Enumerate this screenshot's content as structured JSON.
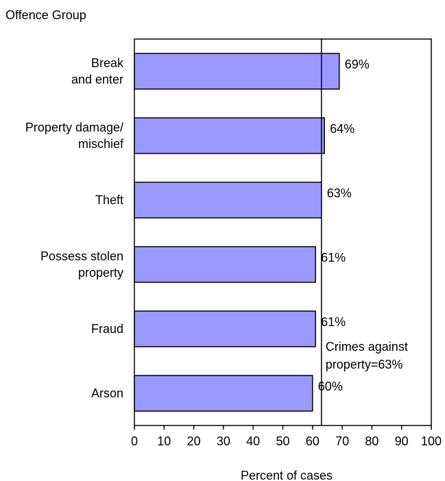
{
  "chart_data": {
    "type": "bar",
    "orientation": "horizontal",
    "y_axis_title": "Offence Group",
    "xlabel": "Percent of cases",
    "categories": [
      [
        "Break",
        "and enter"
      ],
      [
        "Property damage/",
        "mischief"
      ],
      [
        "Theft"
      ],
      [
        "Possess stolen",
        "property"
      ],
      [
        "Fraud"
      ],
      [
        "Arson"
      ]
    ],
    "values": [
      69,
      64,
      63,
      61,
      61,
      60
    ],
    "data_labels": [
      "69%",
      "64%",
      "63%",
      "61%",
      "61%",
      "60%"
    ],
    "xlim": [
      0,
      100
    ],
    "x_ticks": [
      0,
      10,
      20,
      30,
      40,
      50,
      60,
      70,
      80,
      90,
      100
    ],
    "grid": false,
    "reference_line": {
      "value": 63,
      "label_lines": [
        "Crimes against",
        "property=63%"
      ]
    },
    "colors": {
      "bar_fill": "#9999ff",
      "bar_stroke": "#000000",
      "axis": "#000000"
    }
  }
}
